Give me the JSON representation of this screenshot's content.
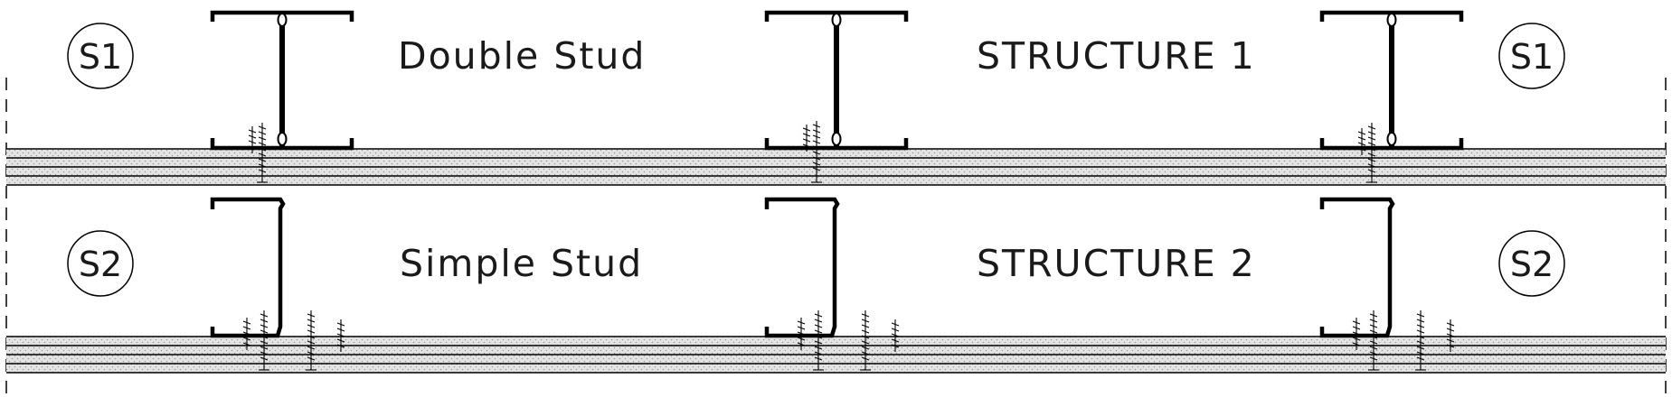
{
  "rows": [
    {
      "tag": "S1",
      "title": "Double Stud",
      "structure": "STRUCTURE 1",
      "stud_type": "double"
    },
    {
      "tag": "S2",
      "title": "Simple Stud",
      "structure": "STRUCTURE 2",
      "stud_type": "simple"
    }
  ],
  "colors": {
    "line": "#000000",
    "board_fill": "#e6e6e6",
    "background": "#ffffff"
  }
}
